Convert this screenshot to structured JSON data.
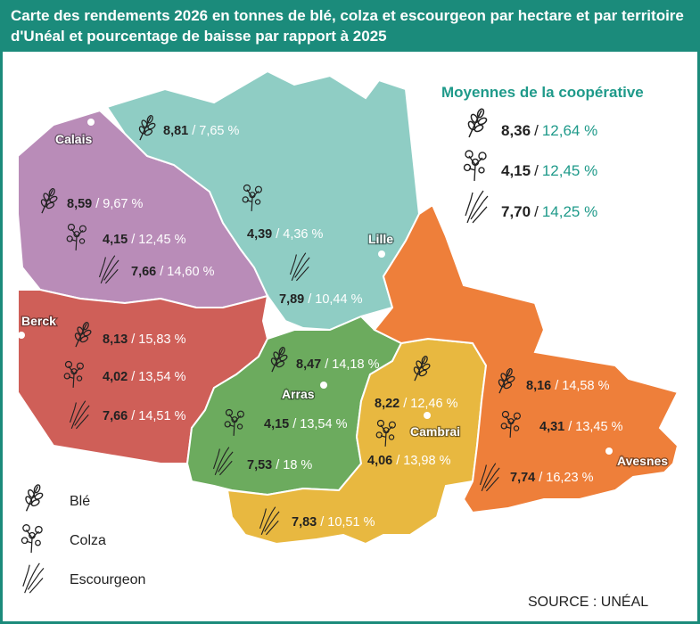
{
  "header": {
    "title": "Carte des rendements 2026 en tonnes de blé, colza et escourgeon par hectare et par territoire d'Unéal et pourcentage de baisse par rapport à 2025"
  },
  "separator": "/",
  "averages": {
    "title": "Moyennes de la coopérative",
    "rows": [
      {
        "yield": "8,36",
        "drop": "12,64 %"
      },
      {
        "yield": "4,15",
        "drop": "12,45 %"
      },
      {
        "yield": "7,70",
        "drop": "14,25 %"
      }
    ]
  },
  "territories": [
    {
      "name": "Lille",
      "rows": [
        {
          "yield": "8,81",
          "drop": "7,65 %"
        },
        {
          "yield": "4,39",
          "drop": "4,36 %"
        },
        {
          "yield": "7,89",
          "drop": "10,44 %"
        }
      ]
    },
    {
      "name": "Calais",
      "rows": [
        {
          "yield": "8,59",
          "drop": "9,67 %"
        },
        {
          "yield": "4,15",
          "drop": "12,45 %"
        },
        {
          "yield": "7,66",
          "drop": "14,60 %"
        }
      ]
    },
    {
      "name": "Berck",
      "rows": [
        {
          "yield": "8,13",
          "drop": "15,83 %"
        },
        {
          "yield": "4,02",
          "drop": "13,54 %"
        },
        {
          "yield": "7,66",
          "drop": "14,51 %"
        }
      ]
    },
    {
      "name": "Arras",
      "rows": [
        {
          "yield": "8,47",
          "drop": "14,18 %"
        },
        {
          "yield": "4,15",
          "drop": "13,54 %"
        },
        {
          "yield": "7,53",
          "drop": "18 %"
        }
      ]
    },
    {
      "name": "Cambrai",
      "rows": [
        {
          "yield": "8,22",
          "drop": "12,46 %"
        },
        {
          "yield": "4,06",
          "drop": "13,98 %"
        },
        {
          "yield": "7,83",
          "drop": "10,51 %"
        }
      ]
    },
    {
      "name": "Avesnes",
      "rows": [
        {
          "yield": "8,16",
          "drop": "14,58 %"
        },
        {
          "yield": "4,31",
          "drop": "13,45 %"
        },
        {
          "yield": "7,74",
          "drop": "16,23 %"
        }
      ]
    }
  ],
  "legend": {
    "items": [
      "Blé",
      "Colza",
      "Escourgeon"
    ]
  },
  "source": "SOURCE : UNÉAL"
}
